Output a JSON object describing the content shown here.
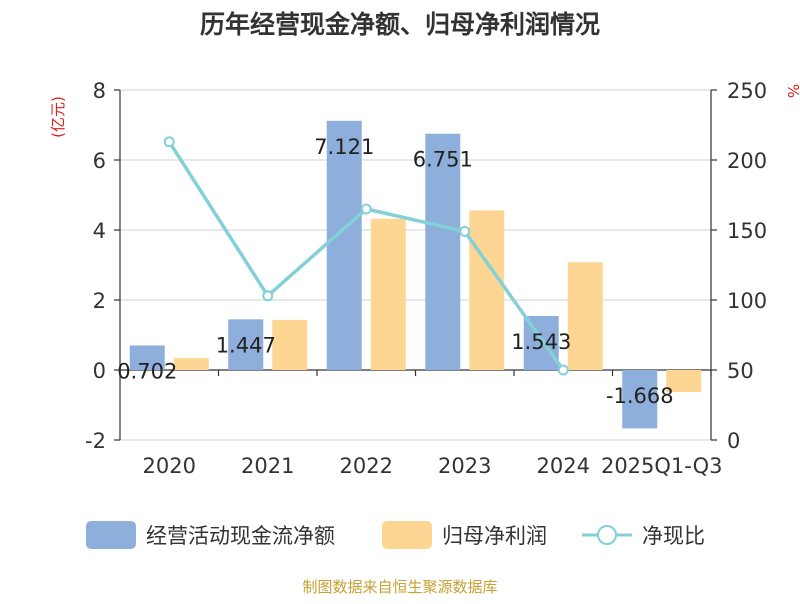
{
  "colors": {
    "bar_cash": "#8eaedb",
    "bar_profit": "#fdd693",
    "line_ratio": "#83d0d8",
    "axis_unit": "#e0201b",
    "source": "#c8a033",
    "title": "#333333",
    "grid": "#d0d0d0",
    "axis": "#333333"
  },
  "chart_data": {
    "type": "bar",
    "title": "历年经营现金净额、归母净利润情况",
    "categories": [
      "2020",
      "2021",
      "2022",
      "2023",
      "2024",
      "2025Q1-Q3"
    ],
    "y_left": {
      "unit_label": "(亿元)",
      "ylim": [
        -2,
        8
      ],
      "ticks": [
        -2,
        0,
        2,
        4,
        6,
        8
      ],
      "tick_labels": [
        "-2",
        "0",
        "2",
        "4",
        "6",
        "8"
      ]
    },
    "y_right": {
      "unit_label": "%",
      "ylim": [
        0,
        250
      ],
      "ticks": [
        0,
        50,
        100,
        150,
        200,
        250
      ],
      "tick_labels": [
        "0",
        "50",
        "100",
        "150",
        "200",
        "250"
      ]
    },
    "grid": true,
    "series": [
      {
        "name": "经营活动现金流净额",
        "type": "bar",
        "axis": "left",
        "values": [
          0.702,
          1.447,
          7.121,
          6.751,
          1.543,
          -1.668
        ],
        "data_labels": [
          "0.702",
          "1.447",
          "7.121",
          "6.751",
          "1.543",
          "-1.668"
        ]
      },
      {
        "name": "归母净利润",
        "type": "bar",
        "axis": "left",
        "values": [
          0.34,
          1.43,
          4.32,
          4.56,
          3.08,
          -0.63
        ]
      },
      {
        "name": "净现比",
        "type": "line",
        "axis": "right",
        "values": [
          213,
          103,
          165,
          149,
          50,
          null
        ]
      }
    ],
    "legend_position": "bottom"
  },
  "source_text": "制图数据来自恒生聚源数据库"
}
